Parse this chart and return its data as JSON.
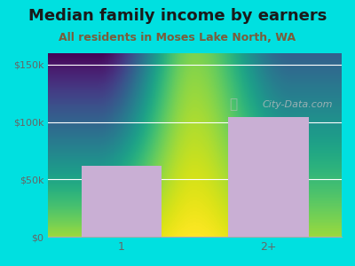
{
  "title": "Median family income by earners",
  "subtitle": "All residents in Moses Lake North, WA",
  "categories": [
    "1",
    "2+"
  ],
  "values": [
    62000,
    104000
  ],
  "bar_color": "#c9afd4",
  "outer_bg": "#00e0e0",
  "ylim": [
    0,
    160000
  ],
  "yticks": [
    0,
    50000,
    100000,
    150000
  ],
  "ytick_labels": [
    "$0",
    "$50k",
    "$100k",
    "$150k"
  ],
  "title_fontsize": 13,
  "subtitle_fontsize": 9,
  "title_color": "#1a1a1a",
  "subtitle_color": "#7a5c3a",
  "watermark": "City-Data.com",
  "watermark_color": "#c0c0c0",
  "tick_color": "#666666"
}
